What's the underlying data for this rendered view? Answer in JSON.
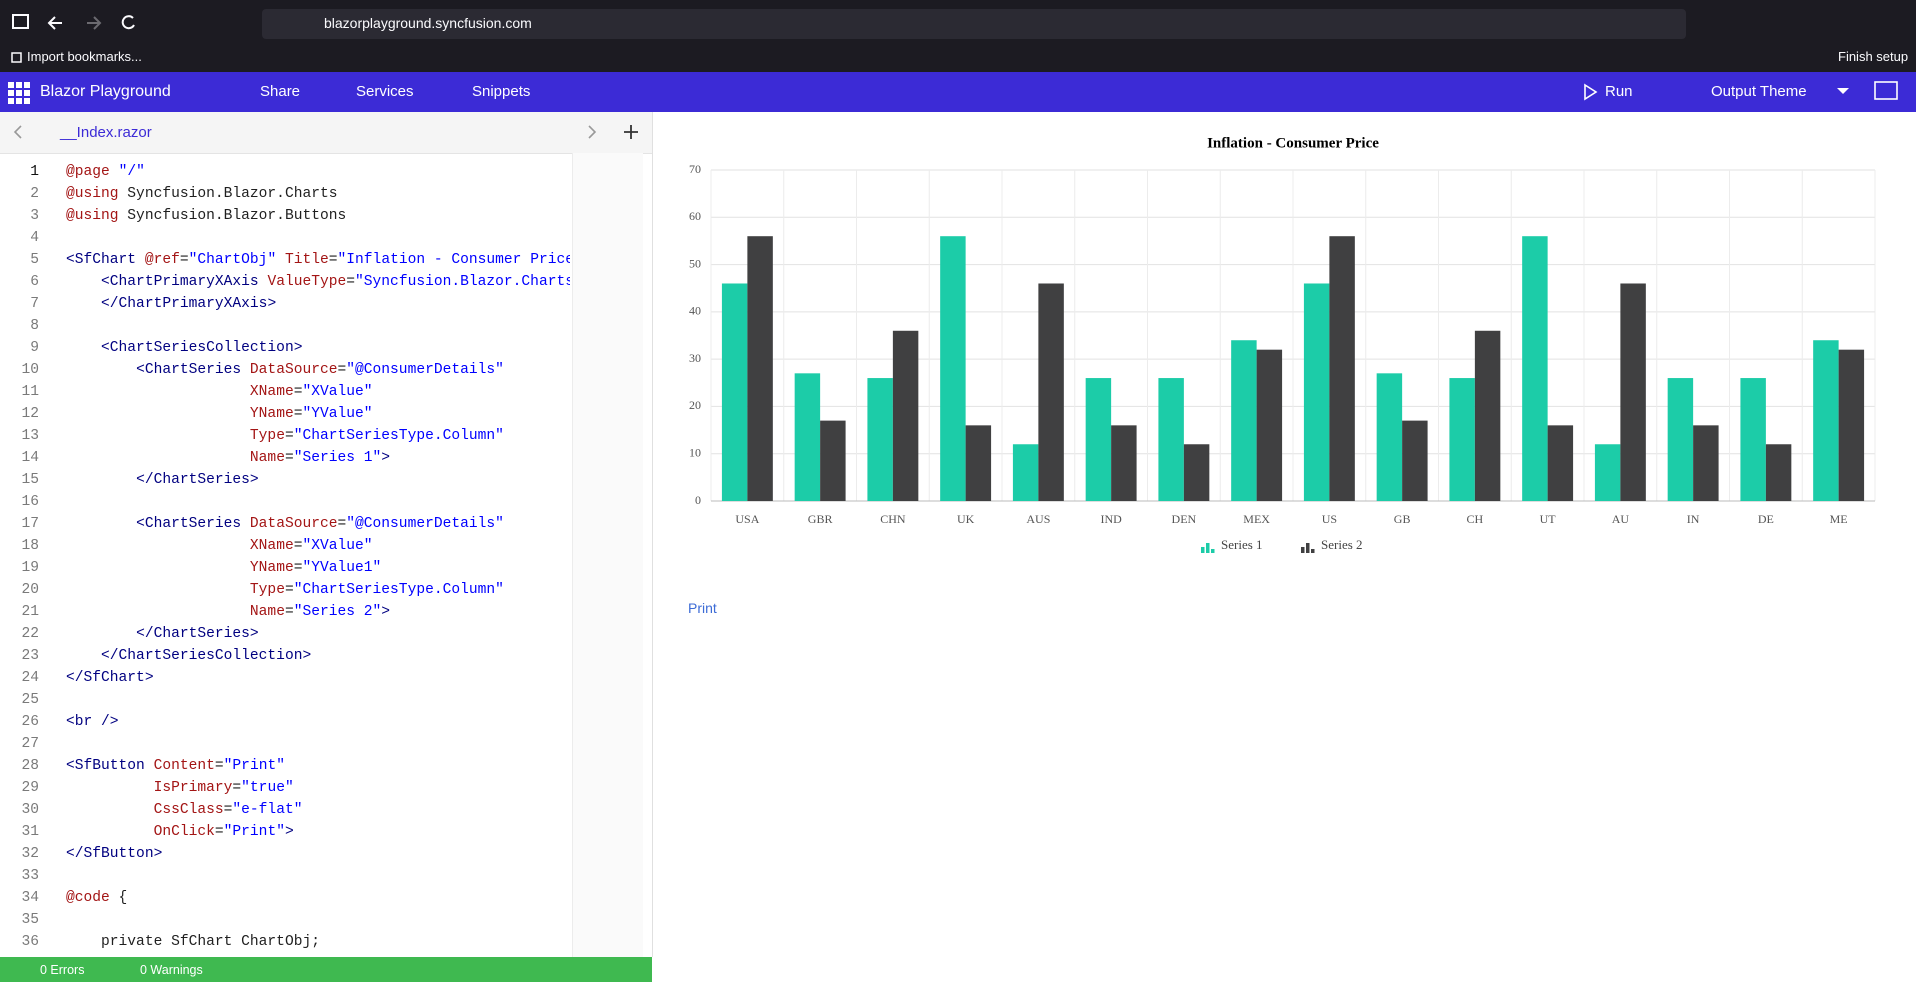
{
  "browser": {
    "url": "blazorplayground.syncfusion.com",
    "bookmark": "Import bookmarks...",
    "finish_setup": "Finish setup"
  },
  "toolbar": {
    "title": "Blazor Playground",
    "share": "Share",
    "services": "Services",
    "snippets": "Snippets",
    "run": "Run",
    "output_theme": "Output Theme"
  },
  "editor": {
    "tab": "__Index.razor",
    "lines": [
      {
        "n": 1,
        "code": "@page \"/\""
      },
      {
        "n": 2,
        "code": "@using Syncfusion.Blazor.Charts"
      },
      {
        "n": 3,
        "code": "@using Syncfusion.Blazor.Buttons"
      },
      {
        "n": 4
      },
      {
        "n": 5,
        "code": "<SfChart @ref=\"ChartObj\" Title=\"Inflation - Consumer Price"
      },
      {
        "n": 6,
        "code": "    <ChartPrimaryXAxis ValueType=\"Syncfusion.Blazor.Charts"
      },
      {
        "n": 7,
        "code": "    </ChartPrimaryXAxis>"
      },
      {
        "n": 8
      },
      {
        "n": 9,
        "code": "    <ChartSeriesCollection>"
      },
      {
        "n": 10,
        "code": "        <ChartSeries DataSource=\"@ConsumerDetails\""
      },
      {
        "n": 11,
        "code": "                     XName=\"XValue\""
      },
      {
        "n": 12,
        "code": "                     YName=\"YValue\""
      },
      {
        "n": 13,
        "code": "                     Type=\"ChartSeriesType.Column\""
      },
      {
        "n": 14,
        "code": "                     Name=\"Series 1\">"
      },
      {
        "n": 15,
        "code": "        </ChartSeries>"
      },
      {
        "n": 16
      },
      {
        "n": 17,
        "code": "        <ChartSeries DataSource=\"@ConsumerDetails\""
      },
      {
        "n": 18,
        "code": "                     XName=\"XValue\""
      },
      {
        "n": 19,
        "code": "                     YName=\"YValue1\""
      },
      {
        "n": 20,
        "code": "                     Type=\"ChartSeriesType.Column\""
      },
      {
        "n": 21,
        "code": "                     Name=\"Series 2\">"
      },
      {
        "n": 22,
        "code": "        </ChartSeries>"
      },
      {
        "n": 23,
        "code": "    </ChartSeriesCollection>"
      },
      {
        "n": 24,
        "code": "</SfChart>"
      },
      {
        "n": 25
      },
      {
        "n": 26,
        "code": "<br />"
      },
      {
        "n": 27
      },
      {
        "n": 28,
        "code": "<SfButton Content=\"Print\""
      },
      {
        "n": 29,
        "code": "          IsPrimary=\"true\""
      },
      {
        "n": 30,
        "code": "          CssClass=\"e-flat\""
      },
      {
        "n": 31,
        "code": "          OnClick=\"Print\">"
      },
      {
        "n": 32,
        "code": "</SfButton>"
      },
      {
        "n": 33
      },
      {
        "n": 34,
        "code": "@code {"
      },
      {
        "n": 35
      },
      {
        "n": 36,
        "code": "    private SfChart ChartObj;"
      }
    ],
    "errors": "0 Errors",
    "warnings": "0 Warnings"
  },
  "chart_data": {
    "type": "bar",
    "title": "Inflation - Consumer Price",
    "categories": [
      "USA",
      "GBR",
      "CHN",
      "UK",
      "AUS",
      "IND",
      "DEN",
      "MEX",
      "US",
      "GB",
      "CH",
      "UT",
      "AU",
      "IN",
      "DE",
      "ME"
    ],
    "series": [
      {
        "name": "Series 1",
        "color": "#1ccca8",
        "values": [
          46,
          27,
          26,
          56,
          12,
          26,
          26,
          34,
          46,
          27,
          26,
          56,
          12,
          26,
          26,
          34
        ]
      },
      {
        "name": "Series 2",
        "color": "#404041",
        "values": [
          56,
          17,
          36,
          16,
          46,
          16,
          12,
          32,
          56,
          17,
          36,
          16,
          46,
          16,
          12,
          32
        ]
      }
    ],
    "ylim": [
      0,
      70
    ],
    "yticks": [
      0,
      10,
      20,
      30,
      40,
      50,
      60,
      70
    ],
    "grid": true,
    "legend": "bottom"
  },
  "print_button": "Print"
}
